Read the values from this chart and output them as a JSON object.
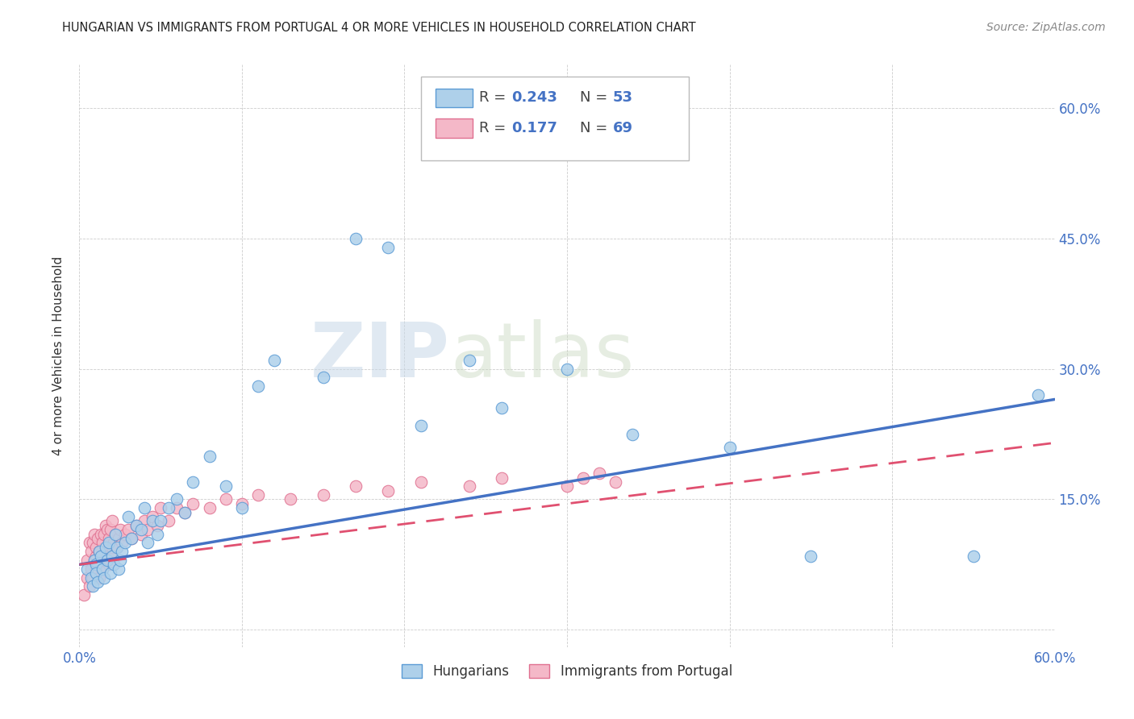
{
  "title": "HUNGARIAN VS IMMIGRANTS FROM PORTUGAL 4 OR MORE VEHICLES IN HOUSEHOLD CORRELATION CHART",
  "source": "Source: ZipAtlas.com",
  "ylabel": "4 or more Vehicles in Household",
  "xlim": [
    0.0,
    0.6
  ],
  "ylim": [
    -0.02,
    0.65
  ],
  "ytick_vals": [
    0.0,
    0.15,
    0.3,
    0.45,
    0.6
  ],
  "ytick_labels": [
    "",
    "15.0%",
    "30.0%",
    "45.0%",
    "60.0%"
  ],
  "legend_r_hungarian": "0.243",
  "legend_n_hungarian": "53",
  "legend_r_portugal": "0.177",
  "legend_n_portugal": "69",
  "color_hungarian_fill": "#aed0ea",
  "color_hungarian_edge": "#5b9bd5",
  "color_hungarian_line": "#4472c4",
  "color_portugal_fill": "#f4b8c8",
  "color_portugal_edge": "#e07090",
  "color_portugal_line": "#e05070",
  "watermark_zip": "ZIP",
  "watermark_atlas": "atlas",
  "hungarian_x": [
    0.005,
    0.007,
    0.008,
    0.009,
    0.01,
    0.01,
    0.011,
    0.012,
    0.013,
    0.014,
    0.015,
    0.016,
    0.017,
    0.018,
    0.019,
    0.02,
    0.021,
    0.022,
    0.023,
    0.024,
    0.025,
    0.026,
    0.028,
    0.03,
    0.032,
    0.035,
    0.038,
    0.04,
    0.042,
    0.045,
    0.048,
    0.05,
    0.055,
    0.06,
    0.065,
    0.07,
    0.08,
    0.09,
    0.1,
    0.11,
    0.12,
    0.15,
    0.17,
    0.19,
    0.21,
    0.24,
    0.26,
    0.3,
    0.34,
    0.4,
    0.45,
    0.55,
    0.59
  ],
  "hungarian_y": [
    0.07,
    0.06,
    0.05,
    0.08,
    0.075,
    0.065,
    0.055,
    0.09,
    0.085,
    0.07,
    0.06,
    0.095,
    0.08,
    0.1,
    0.065,
    0.085,
    0.075,
    0.11,
    0.095,
    0.07,
    0.08,
    0.09,
    0.1,
    0.13,
    0.105,
    0.12,
    0.115,
    0.14,
    0.1,
    0.125,
    0.11,
    0.125,
    0.14,
    0.15,
    0.135,
    0.17,
    0.2,
    0.165,
    0.14,
    0.28,
    0.31,
    0.29,
    0.45,
    0.44,
    0.235,
    0.31,
    0.255,
    0.3,
    0.225,
    0.21,
    0.085,
    0.085,
    0.27
  ],
  "portugal_x": [
    0.003,
    0.005,
    0.005,
    0.006,
    0.006,
    0.007,
    0.007,
    0.008,
    0.008,
    0.009,
    0.009,
    0.01,
    0.01,
    0.01,
    0.011,
    0.011,
    0.012,
    0.012,
    0.013,
    0.013,
    0.014,
    0.014,
    0.015,
    0.015,
    0.016,
    0.016,
    0.017,
    0.017,
    0.018,
    0.018,
    0.019,
    0.019,
    0.02,
    0.02,
    0.021,
    0.022,
    0.023,
    0.024,
    0.025,
    0.026,
    0.028,
    0.03,
    0.032,
    0.035,
    0.038,
    0.04,
    0.042,
    0.045,
    0.048,
    0.05,
    0.055,
    0.06,
    0.065,
    0.07,
    0.08,
    0.09,
    0.1,
    0.11,
    0.13,
    0.15,
    0.17,
    0.19,
    0.21,
    0.24,
    0.26,
    0.3,
    0.31,
    0.32,
    0.33
  ],
  "portugal_y": [
    0.04,
    0.06,
    0.08,
    0.05,
    0.1,
    0.07,
    0.09,
    0.06,
    0.1,
    0.08,
    0.11,
    0.07,
    0.085,
    0.095,
    0.075,
    0.105,
    0.06,
    0.09,
    0.08,
    0.11,
    0.07,
    0.1,
    0.08,
    0.11,
    0.09,
    0.12,
    0.085,
    0.115,
    0.075,
    0.105,
    0.085,
    0.115,
    0.095,
    0.125,
    0.1,
    0.11,
    0.095,
    0.105,
    0.115,
    0.1,
    0.11,
    0.115,
    0.105,
    0.12,
    0.11,
    0.125,
    0.115,
    0.13,
    0.12,
    0.14,
    0.125,
    0.14,
    0.135,
    0.145,
    0.14,
    0.15,
    0.145,
    0.155,
    0.15,
    0.155,
    0.165,
    0.16,
    0.17,
    0.165,
    0.175,
    0.165,
    0.175,
    0.18,
    0.17
  ],
  "trend_h_x0": 0.0,
  "trend_h_y0": 0.075,
  "trend_h_x1": 0.6,
  "trend_h_y1": 0.265,
  "trend_p_x0": 0.0,
  "trend_p_y0": 0.075,
  "trend_p_x1": 0.6,
  "trend_p_y1": 0.215
}
